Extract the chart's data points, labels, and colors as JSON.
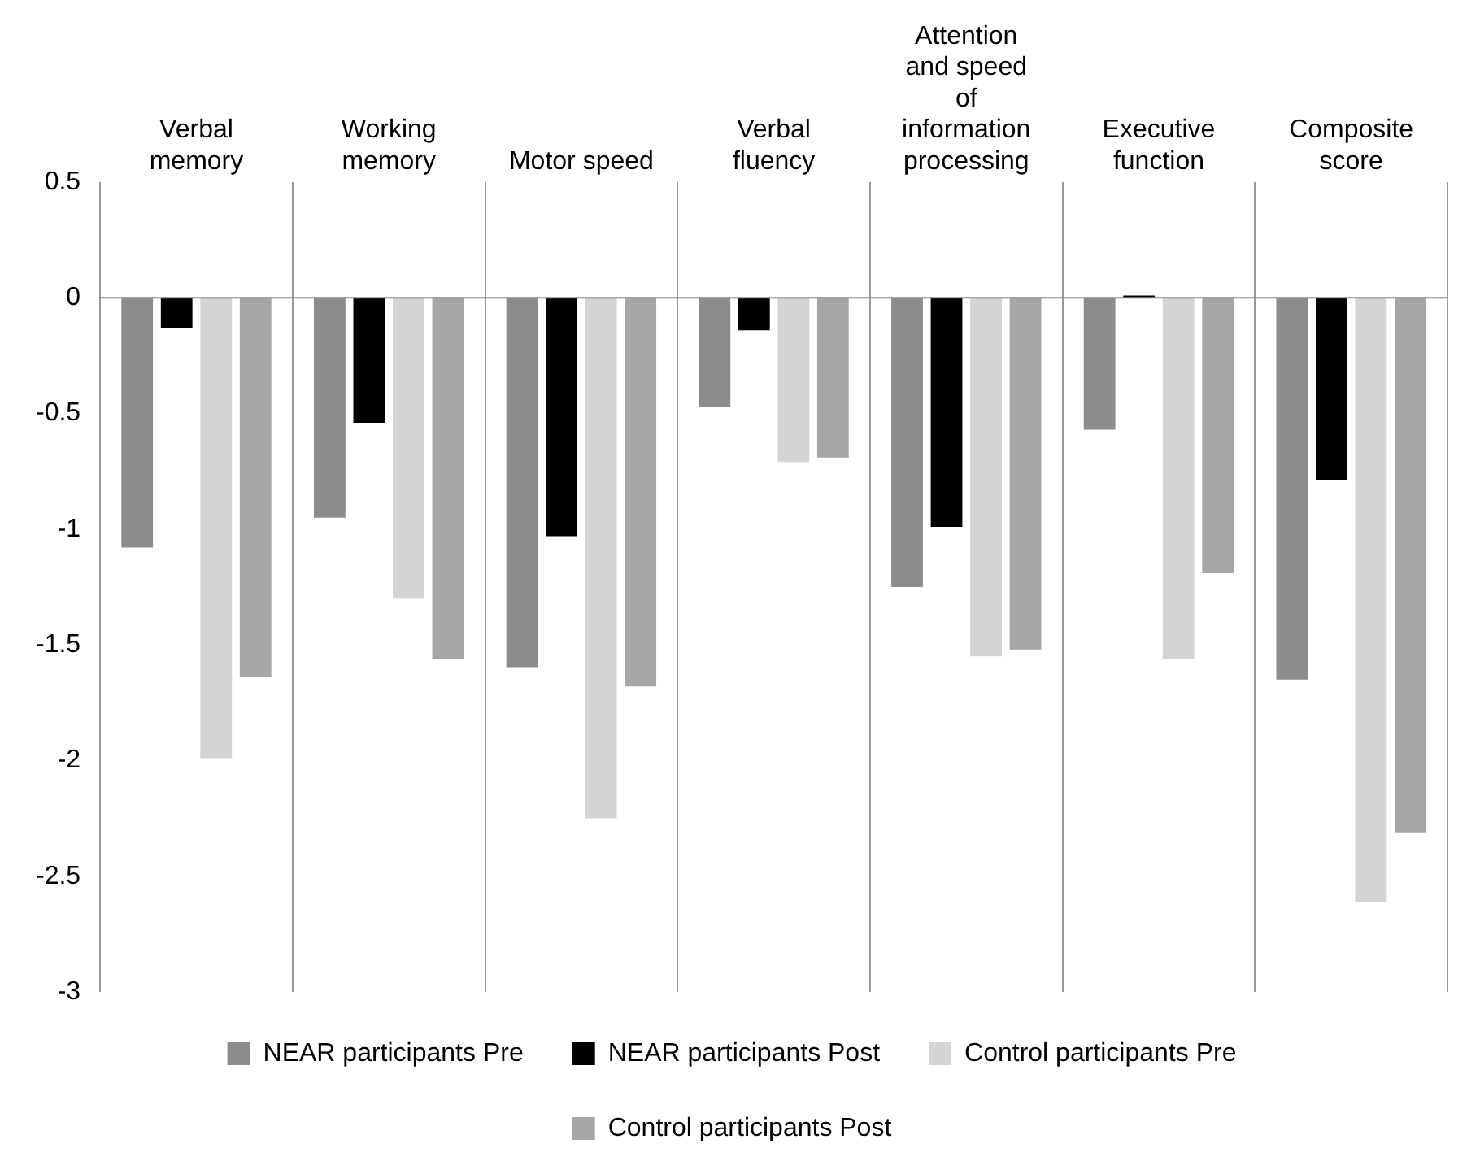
{
  "chart_data": {
    "type": "bar",
    "categories": [
      "Verbal memory",
      "Working memory",
      "Motor speed",
      "Verbal fluency",
      "Attention and speed of information processing",
      "Executive function",
      "Composite score"
    ],
    "series": [
      {
        "name": "NEAR participants Pre",
        "color": "#8c8c8c",
        "values": [
          -1.08,
          -0.95,
          -1.6,
          -0.47,
          -1.25,
          -0.57,
          -1.65
        ]
      },
      {
        "name": "NEAR participants Post",
        "color": "#000000",
        "values": [
          -0.13,
          -0.54,
          -1.03,
          -0.14,
          -0.99,
          0.01,
          -0.79
        ]
      },
      {
        "name": "Control participants Pre",
        "color": "#d4d4d4",
        "values": [
          -1.99,
          -1.3,
          -2.25,
          -0.71,
          -1.55,
          -1.56,
          -2.61
        ]
      },
      {
        "name": "Control participants Post",
        "color": "#a6a6a6",
        "values": [
          -1.64,
          -1.56,
          -1.68,
          -0.69,
          -1.52,
          -1.19,
          -2.31
        ]
      }
    ],
    "ylim": [
      -3,
      0.5
    ],
    "yticks": [
      -3,
      -2.5,
      -2,
      -1.5,
      -1,
      -0.5,
      0,
      0.5
    ],
    "grid": "x",
    "legend": "bottom"
  }
}
